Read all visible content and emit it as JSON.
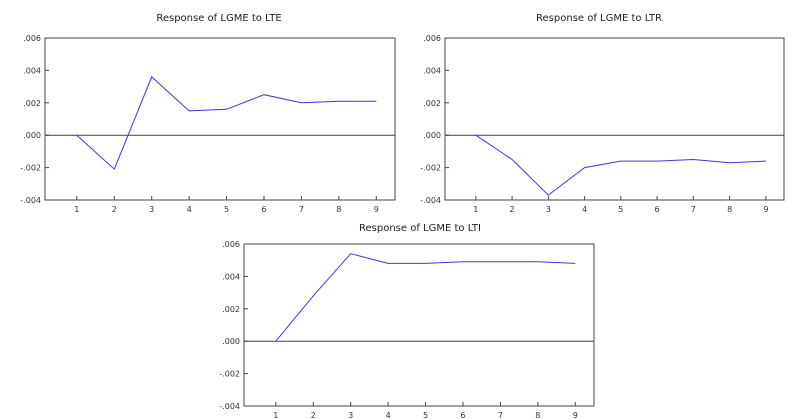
{
  "chart_data": [
    {
      "type": "line",
      "title": "Response of LGME to LTE",
      "x": [
        1,
        2,
        3,
        4,
        5,
        6,
        7,
        8,
        9
      ],
      "series": [
        {
          "values": [
            0.0,
            -0.0021,
            0.0036,
            0.0015,
            0.0016,
            0.0025,
            0.002,
            0.0021,
            0.0021
          ]
        }
      ],
      "yticks": [
        ".006",
        ".004",
        ".002",
        ".000",
        "-.002",
        "-.004"
      ],
      "ylim": [
        -0.004,
        0.006
      ],
      "zero_line": true,
      "line_color": "#3a3ad6"
    },
    {
      "type": "line",
      "title": "Response of LGME to LTR",
      "x": [
        1,
        2,
        3,
        4,
        5,
        6,
        7,
        8,
        9
      ],
      "series": [
        {
          "values": [
            0.0,
            -0.0015,
            -0.0037,
            -0.002,
            -0.0016,
            -0.0016,
            -0.0015,
            -0.0017,
            -0.0016
          ]
        }
      ],
      "yticks": [
        ".006",
        ".004",
        ".002",
        ".000",
        "-.002",
        "-.004"
      ],
      "ylim": [
        -0.004,
        0.006
      ],
      "zero_line": true,
      "line_color": "#3a3ad6"
    },
    {
      "type": "line",
      "title": "Response of LGME to LTI",
      "x": [
        1,
        2,
        3,
        4,
        5,
        6,
        7,
        8,
        9
      ],
      "series": [
        {
          "values": [
            0.0,
            0.0028,
            0.0054,
            0.0048,
            0.0048,
            0.0049,
            0.0049,
            0.0049,
            0.0048
          ]
        }
      ],
      "yticks": [
        ".006",
        ".004",
        ".002",
        ".000",
        "-.002",
        "-.004"
      ],
      "ylim": [
        -0.004,
        0.006
      ],
      "zero_line": true,
      "line_color": "#3a3ad6"
    }
  ]
}
